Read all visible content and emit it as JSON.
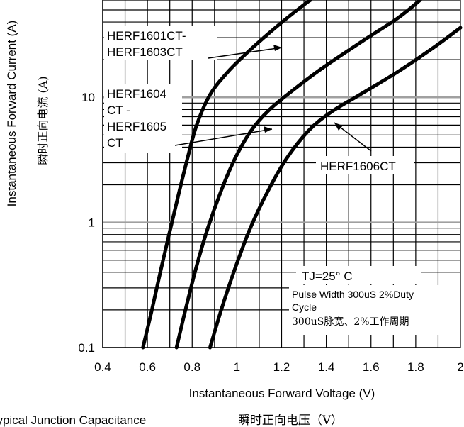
{
  "chart_data": {
    "type": "line",
    "xlabel": "Instantaneous Forward Voltage (V)",
    "xlabel_cn": "瞬时正向电压（V）",
    "ylabel": "Instantaneous Forward Current (A)",
    "ylabel_cn": "瞬时正向电流 (A)",
    "caption": "Typical Junction Capacitance",
    "x_scale": "linear",
    "y_scale": "log",
    "xlim": [
      0.4,
      2.0
    ],
    "ylim": [
      0.1,
      60
    ],
    "x_ticks": [
      "0.4",
      "0.6",
      "0.8",
      "1",
      "1.2",
      "1.4",
      "1.6",
      "1.8",
      "2"
    ],
    "y_ticks": [
      "0.1",
      "1",
      "10"
    ],
    "grid": true,
    "series": [
      {
        "name": "HERF1601CT-HERF1603CT",
        "points": [
          [
            0.58,
            0.1
          ],
          [
            0.62,
            0.2
          ],
          [
            0.66,
            0.42
          ],
          [
            0.7,
            0.85
          ],
          [
            0.74,
            1.7
          ],
          [
            0.78,
            3.3
          ],
          [
            0.82,
            6.0
          ],
          [
            0.88,
            10.5
          ],
          [
            0.96,
            16
          ],
          [
            1.06,
            24
          ],
          [
            1.18,
            37
          ],
          [
            1.3,
            55
          ],
          [
            1.33,
            60
          ]
        ]
      },
      {
        "name": "HERF1604CT-HERF1605CT",
        "points": [
          [
            0.73,
            0.1
          ],
          [
            0.77,
            0.2
          ],
          [
            0.82,
            0.45
          ],
          [
            0.87,
            0.9
          ],
          [
            0.93,
            1.8
          ],
          [
            0.99,
            3.2
          ],
          [
            1.06,
            5.3
          ],
          [
            1.14,
            7.8
          ],
          [
            1.24,
            11
          ],
          [
            1.38,
            17
          ],
          [
            1.56,
            28
          ],
          [
            1.72,
            43
          ],
          [
            1.82,
            60
          ]
        ]
      },
      {
        "name": "HERF1606CT",
        "points": [
          [
            0.88,
            0.1
          ],
          [
            0.93,
            0.2
          ],
          [
            0.99,
            0.42
          ],
          [
            1.06,
            0.9
          ],
          [
            1.14,
            1.8
          ],
          [
            1.22,
            3.2
          ],
          [
            1.32,
            5.4
          ],
          [
            1.42,
            7.6
          ],
          [
            1.55,
            10.5
          ],
          [
            1.72,
            16
          ],
          [
            1.88,
            25
          ],
          [
            2.0,
            36
          ]
        ]
      }
    ],
    "annotations": {
      "series1_label_1": "HERF1601CT-",
      "series1_label_2": "HERF1603CT",
      "series2_label_1": "HERF1604",
      "series2_label_2": "CT -",
      "series2_label_3": "HERF1605",
      "series2_label_4": "CT",
      "series3_label": "HERF1606CT",
      "condition_tj": "TJ=25° C",
      "condition_pw_1": "Pulse Width 300uS 2%Duty",
      "condition_pw_2": "Cycle",
      "condition_pw_cn": "300uS脉宽、2%工作周期"
    }
  },
  "colors": {
    "curve": "#000000",
    "grid": "#000000",
    "grid_highlight": "#a0a0a0"
  }
}
